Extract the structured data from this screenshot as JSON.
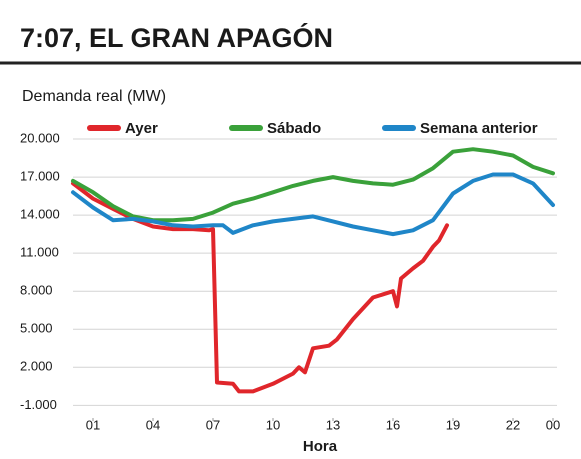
{
  "chart_data": {
    "type": "line",
    "title": "7:07, EL GRAN APAGÓN",
    "ylabel": "Demanda real (MW)",
    "xlabel": "Hora",
    "xlim": [
      0,
      24.2
    ],
    "xticks": [
      {
        "value": 1,
        "label": "01"
      },
      {
        "value": 4,
        "label": "04"
      },
      {
        "value": 7,
        "label": "07"
      },
      10,
      13,
      16,
      19,
      22,
      {
        "value": 24,
        "label": "00"
      }
    ],
    "ylim": [
      -2000,
      21500
    ],
    "yticks": [
      {
        "value": -1000,
        "label": "-1.000"
      },
      {
        "value": 2000,
        "label": "2.000"
      },
      {
        "value": 5000,
        "label": "5.000"
      },
      {
        "value": 8000,
        "label": "8.000"
      },
      {
        "value": 11000,
        "label": "11.000"
      },
      {
        "value": 14000,
        "label": "14.000"
      },
      {
        "value": 17000,
        "label": "17.000"
      },
      {
        "value": 20000,
        "label": "20.000"
      }
    ],
    "grid": true,
    "series": [
      {
        "name": "Ayer",
        "color": "#e0262b",
        "x": [
          0,
          1,
          2,
          3,
          4,
          5,
          6,
          6.8,
          7,
          7.2,
          8,
          8.3,
          9,
          10,
          11,
          11.3,
          11.6,
          12,
          12.8,
          13.2,
          14,
          15,
          16,
          16.2,
          16.4,
          17,
          17.5,
          18,
          18.3,
          18.7
        ],
        "values": [
          16500,
          15300,
          14500,
          13700,
          13100,
          12900,
          12900,
          12800,
          12900,
          800,
          700,
          100,
          100,
          700,
          1500,
          2000,
          1600,
          3500,
          3700,
          4200,
          5800,
          7500,
          8000,
          6800,
          9000,
          9800,
          10400,
          11500,
          12000,
          13200
        ]
      },
      {
        "name": "Sábado",
        "color": "#3aa13a",
        "x": [
          0,
          1,
          2,
          3,
          4,
          5,
          6,
          7,
          8,
          9,
          10,
          11,
          12,
          13,
          14,
          15,
          16,
          17,
          18,
          19,
          20,
          21,
          22,
          23,
          24
        ],
        "values": [
          16700,
          15800,
          14700,
          13900,
          13600,
          13600,
          13700,
          14200,
          14900,
          15300,
          15800,
          16300,
          16700,
          17000,
          16700,
          16500,
          16400,
          16800,
          17700,
          19000,
          19200,
          19000,
          18700,
          17800,
          17300
        ]
      },
      {
        "name": "Semana anterior",
        "color": "#1f86c8",
        "x": [
          0,
          1,
          2,
          3,
          4,
          5,
          6,
          7,
          7.5,
          8,
          9,
          10,
          11,
          12,
          13,
          14,
          15,
          16,
          17,
          18,
          19,
          20,
          21,
          22,
          23,
          24
        ],
        "values": [
          15800,
          14600,
          13600,
          13700,
          13500,
          13200,
          13100,
          13200,
          13200,
          12600,
          13200,
          13500,
          13700,
          13900,
          13500,
          13100,
          12800,
          12500,
          12800,
          13600,
          15700,
          16700,
          17200,
          17200,
          16500,
          14800
        ]
      }
    ]
  }
}
